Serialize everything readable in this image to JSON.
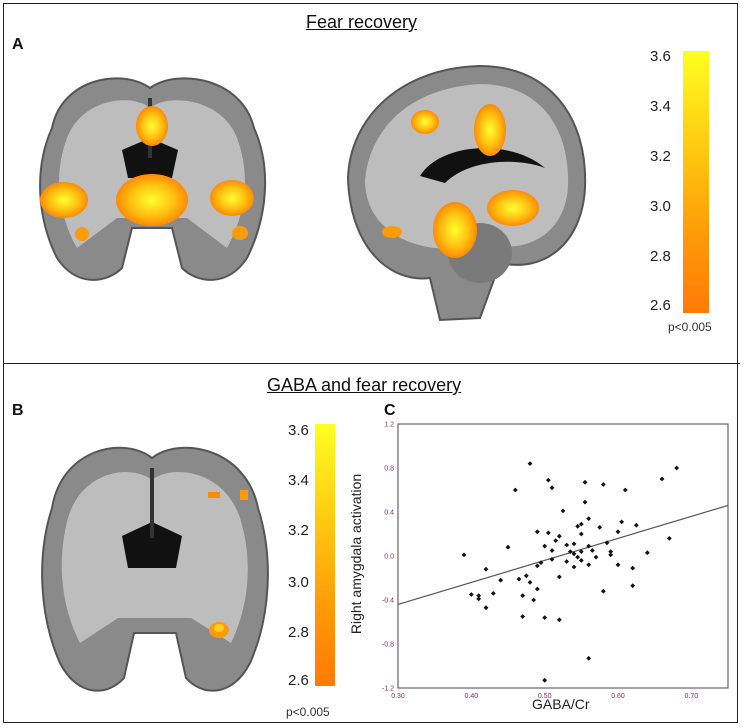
{
  "figure": {
    "top_title": "Fear recovery",
    "bottom_title": "GABA and fear recovery",
    "panels": [
      "A",
      "B",
      "C"
    ],
    "colorbar_a": {
      "ticks": [
        "3.6",
        "3.4",
        "3.2",
        "3.0",
        "2.8",
        "2.6"
      ],
      "threshold": "p<0.005"
    },
    "colorbar_b": {
      "ticks": [
        "3.6",
        "3.4",
        "3.2",
        "3.0",
        "2.8",
        "2.6"
      ],
      "threshold": "p<0.005"
    },
    "colors": {
      "activation_high": "#ffff20",
      "activation_low": "#ff7a05",
      "axis": "#8a2b6b"
    }
  },
  "chart_data": {
    "type": "scatter",
    "xlabel": "GABA/Cr",
    "ylabel": "Right amygdala activation",
    "xlim": [
      0.3,
      0.75
    ],
    "ylim": [
      -1.2,
      1.2
    ],
    "x_ticks": [
      "0.30",
      "0.40",
      "0.50",
      "0.60",
      "0.70"
    ],
    "y_ticks": [
      "1.2",
      "0.8",
      "0.4",
      "0.0",
      "-0.4",
      "-0.8",
      "-1.2"
    ],
    "grid": false,
    "trendline": {
      "x": [
        0.3,
        0.75
      ],
      "y": [
        -0.44,
        0.46
      ]
    },
    "points": [
      [
        0.39,
        0.01
      ],
      [
        0.4,
        -0.35
      ],
      [
        0.41,
        -0.39
      ],
      [
        0.41,
        -0.36
      ],
      [
        0.42,
        -0.12
      ],
      [
        0.42,
        -0.47
      ],
      [
        0.43,
        -0.34
      ],
      [
        0.44,
        -0.22
      ],
      [
        0.45,
        0.08
      ],
      [
        0.46,
        0.6
      ],
      [
        0.465,
        -0.21
      ],
      [
        0.47,
        -0.36
      ],
      [
        0.47,
        -0.55
      ],
      [
        0.475,
        -0.18
      ],
      [
        0.48,
        0.84
      ],
      [
        0.48,
        -0.24
      ],
      [
        0.485,
        -0.4
      ],
      [
        0.49,
        -0.3
      ],
      [
        0.49,
        0.22
      ],
      [
        0.49,
        -0.09
      ],
      [
        0.495,
        -0.06
      ],
      [
        0.5,
        0.09
      ],
      [
        0.5,
        -0.56
      ],
      [
        0.5,
        -1.13
      ],
      [
        0.505,
        0.69
      ],
      [
        0.505,
        0.21
      ],
      [
        0.51,
        0.62
      ],
      [
        0.51,
        0.05
      ],
      [
        0.51,
        -0.03
      ],
      [
        0.515,
        0.14
      ],
      [
        0.52,
        0.18
      ],
      [
        0.52,
        -0.19
      ],
      [
        0.52,
        -0.58
      ],
      [
        0.525,
        0.41
      ],
      [
        0.53,
        0.1
      ],
      [
        0.53,
        -0.05
      ],
      [
        0.535,
        0.04
      ],
      [
        0.54,
        0.11
      ],
      [
        0.54,
        0.02
      ],
      [
        0.54,
        -0.1
      ],
      [
        0.545,
        0.27
      ],
      [
        0.545,
        -0.01
      ],
      [
        0.55,
        0.29
      ],
      [
        0.55,
        0.2
      ],
      [
        0.55,
        0.04
      ],
      [
        0.55,
        -0.04
      ],
      [
        0.555,
        0.67
      ],
      [
        0.555,
        0.49
      ],
      [
        0.56,
        0.34
      ],
      [
        0.56,
        0.09
      ],
      [
        0.56,
        -0.08
      ],
      [
        0.56,
        -0.93
      ],
      [
        0.565,
        0.05
      ],
      [
        0.57,
        -0.01
      ],
      [
        0.575,
        0.26
      ],
      [
        0.58,
        0.65
      ],
      [
        0.58,
        -0.32
      ],
      [
        0.585,
        0.12
      ],
      [
        0.59,
        0.04
      ],
      [
        0.59,
        0.01
      ],
      [
        0.6,
        0.22
      ],
      [
        0.6,
        -0.08
      ],
      [
        0.605,
        0.31
      ],
      [
        0.61,
        0.6
      ],
      [
        0.62,
        -0.11
      ],
      [
        0.62,
        -0.27
      ],
      [
        0.625,
        0.28
      ],
      [
        0.64,
        0.03
      ],
      [
        0.66,
        0.7
      ],
      [
        0.67,
        0.16
      ],
      [
        0.68,
        0.8
      ]
    ]
  }
}
